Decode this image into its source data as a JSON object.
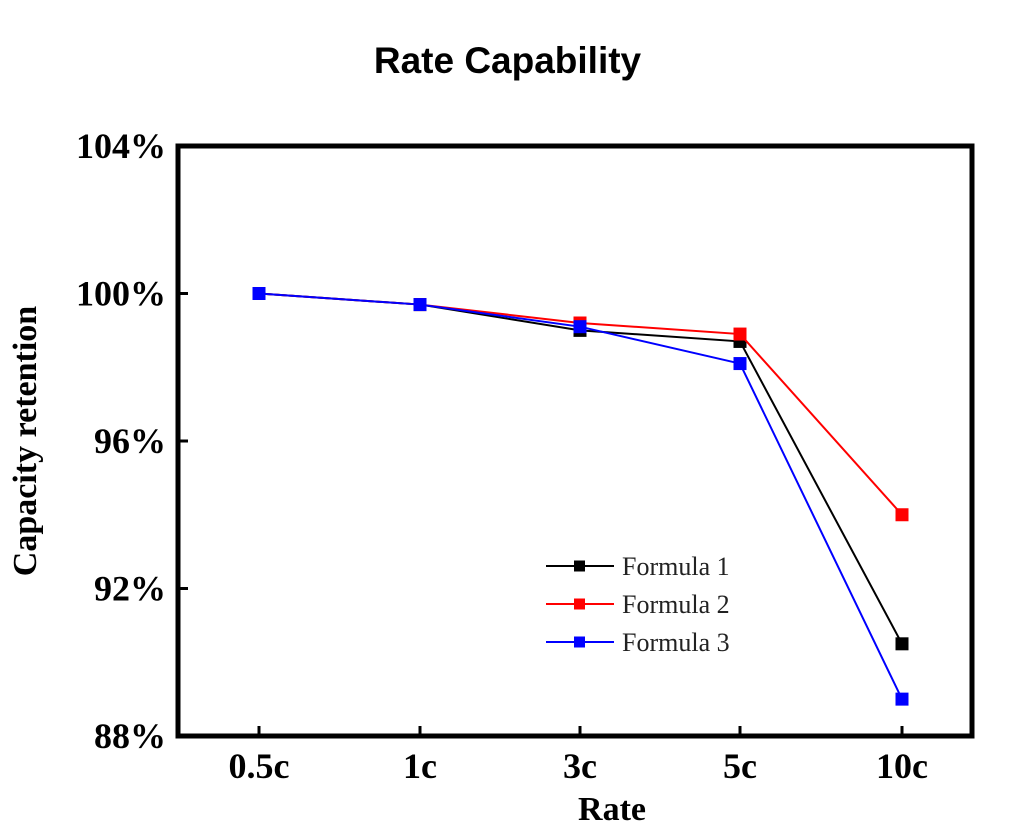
{
  "chart_data": {
    "type": "line",
    "title": "Rate Capability",
    "xlabel": "Rate",
    "ylabel": "Capacity retention",
    "categories": [
      "0.5c",
      "1c",
      "3c",
      "5c",
      "10c"
    ],
    "ylim": [
      88,
      104
    ],
    "yticks": [
      88,
      92,
      96,
      100,
      104
    ],
    "ytick_labels": [
      "88%",
      "92%",
      "96%",
      "100%",
      "104%"
    ],
    "grid": false,
    "legend_position": "bottom-right",
    "series": [
      {
        "name": "Formula 1",
        "color": "#000000",
        "values": [
          100.0,
          99.7,
          99.0,
          98.7,
          90.5
        ]
      },
      {
        "name": "Formula 2",
        "color": "#ff0000",
        "values": [
          100.0,
          99.7,
          99.2,
          98.9,
          94.0
        ]
      },
      {
        "name": "Formula 3",
        "color": "#0000ff",
        "values": [
          100.0,
          99.7,
          99.1,
          98.1,
          89.0
        ]
      }
    ]
  }
}
